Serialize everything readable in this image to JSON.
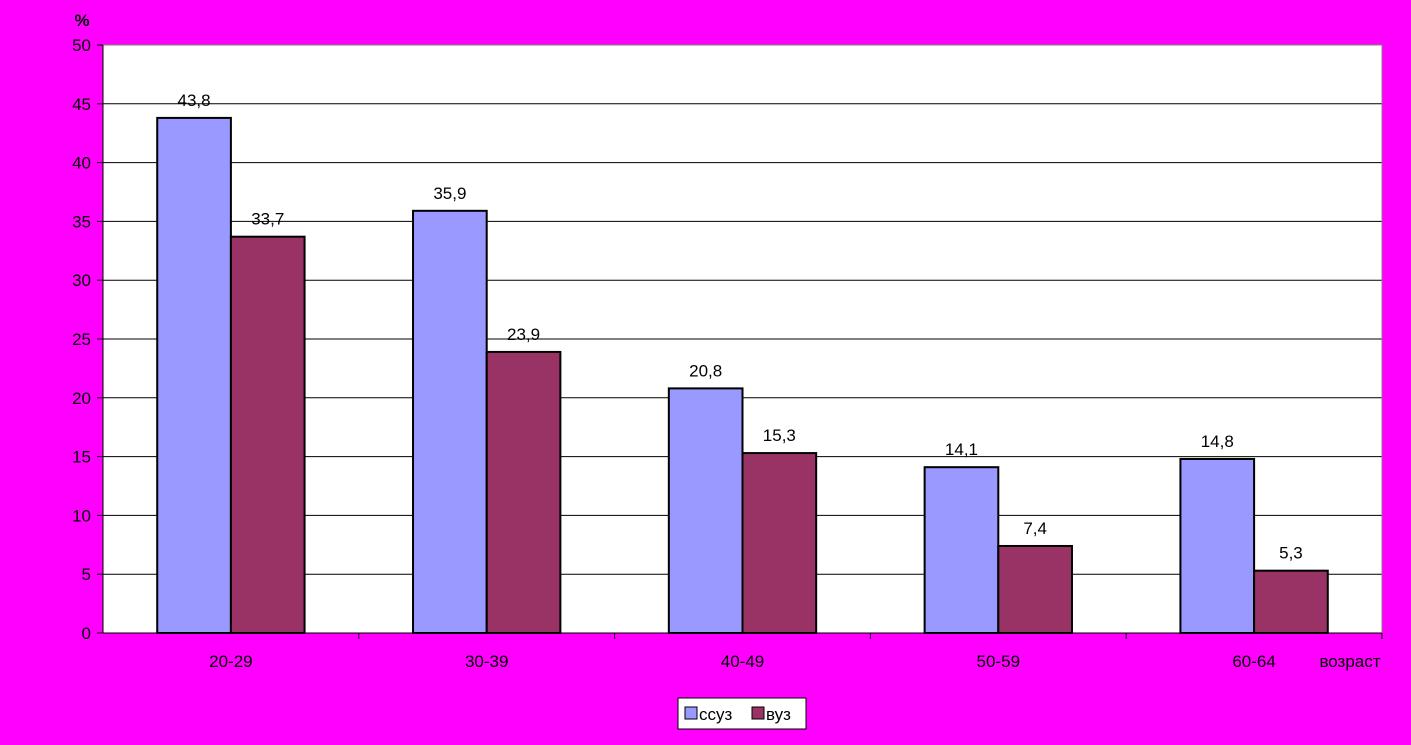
{
  "chart_data": {
    "type": "bar",
    "categories": [
      "20-29",
      "30-39",
      "40-49",
      "50-59",
      "60-64"
    ],
    "series": [
      {
        "name": "ссуз",
        "values": [
          43.8,
          35.9,
          20.8,
          14.1,
          14.8
        ],
        "labels": [
          "43,8",
          "35,9",
          "20,8",
          "14,1",
          "14,8"
        ],
        "color": "#9999ff"
      },
      {
        "name": "вуз",
        "values": [
          33.7,
          23.9,
          15.3,
          7.4,
          5.3
        ],
        "labels": [
          "33,7",
          "23,9",
          "15,3",
          "7,4",
          "5,3"
        ],
        "color": "#993366"
      }
    ],
    "ylabel": "%",
    "xlabel": "возраст",
    "ylim": [
      0,
      50
    ],
    "yticks": [
      "0",
      "5",
      "10",
      "15",
      "20",
      "25",
      "30",
      "35",
      "40",
      "45",
      "50"
    ],
    "grid": true,
    "legend_position": "bottom"
  },
  "colors": {
    "background": "#ff00ff",
    "plot_area": "#ffffff",
    "gridline": "#000000"
  }
}
